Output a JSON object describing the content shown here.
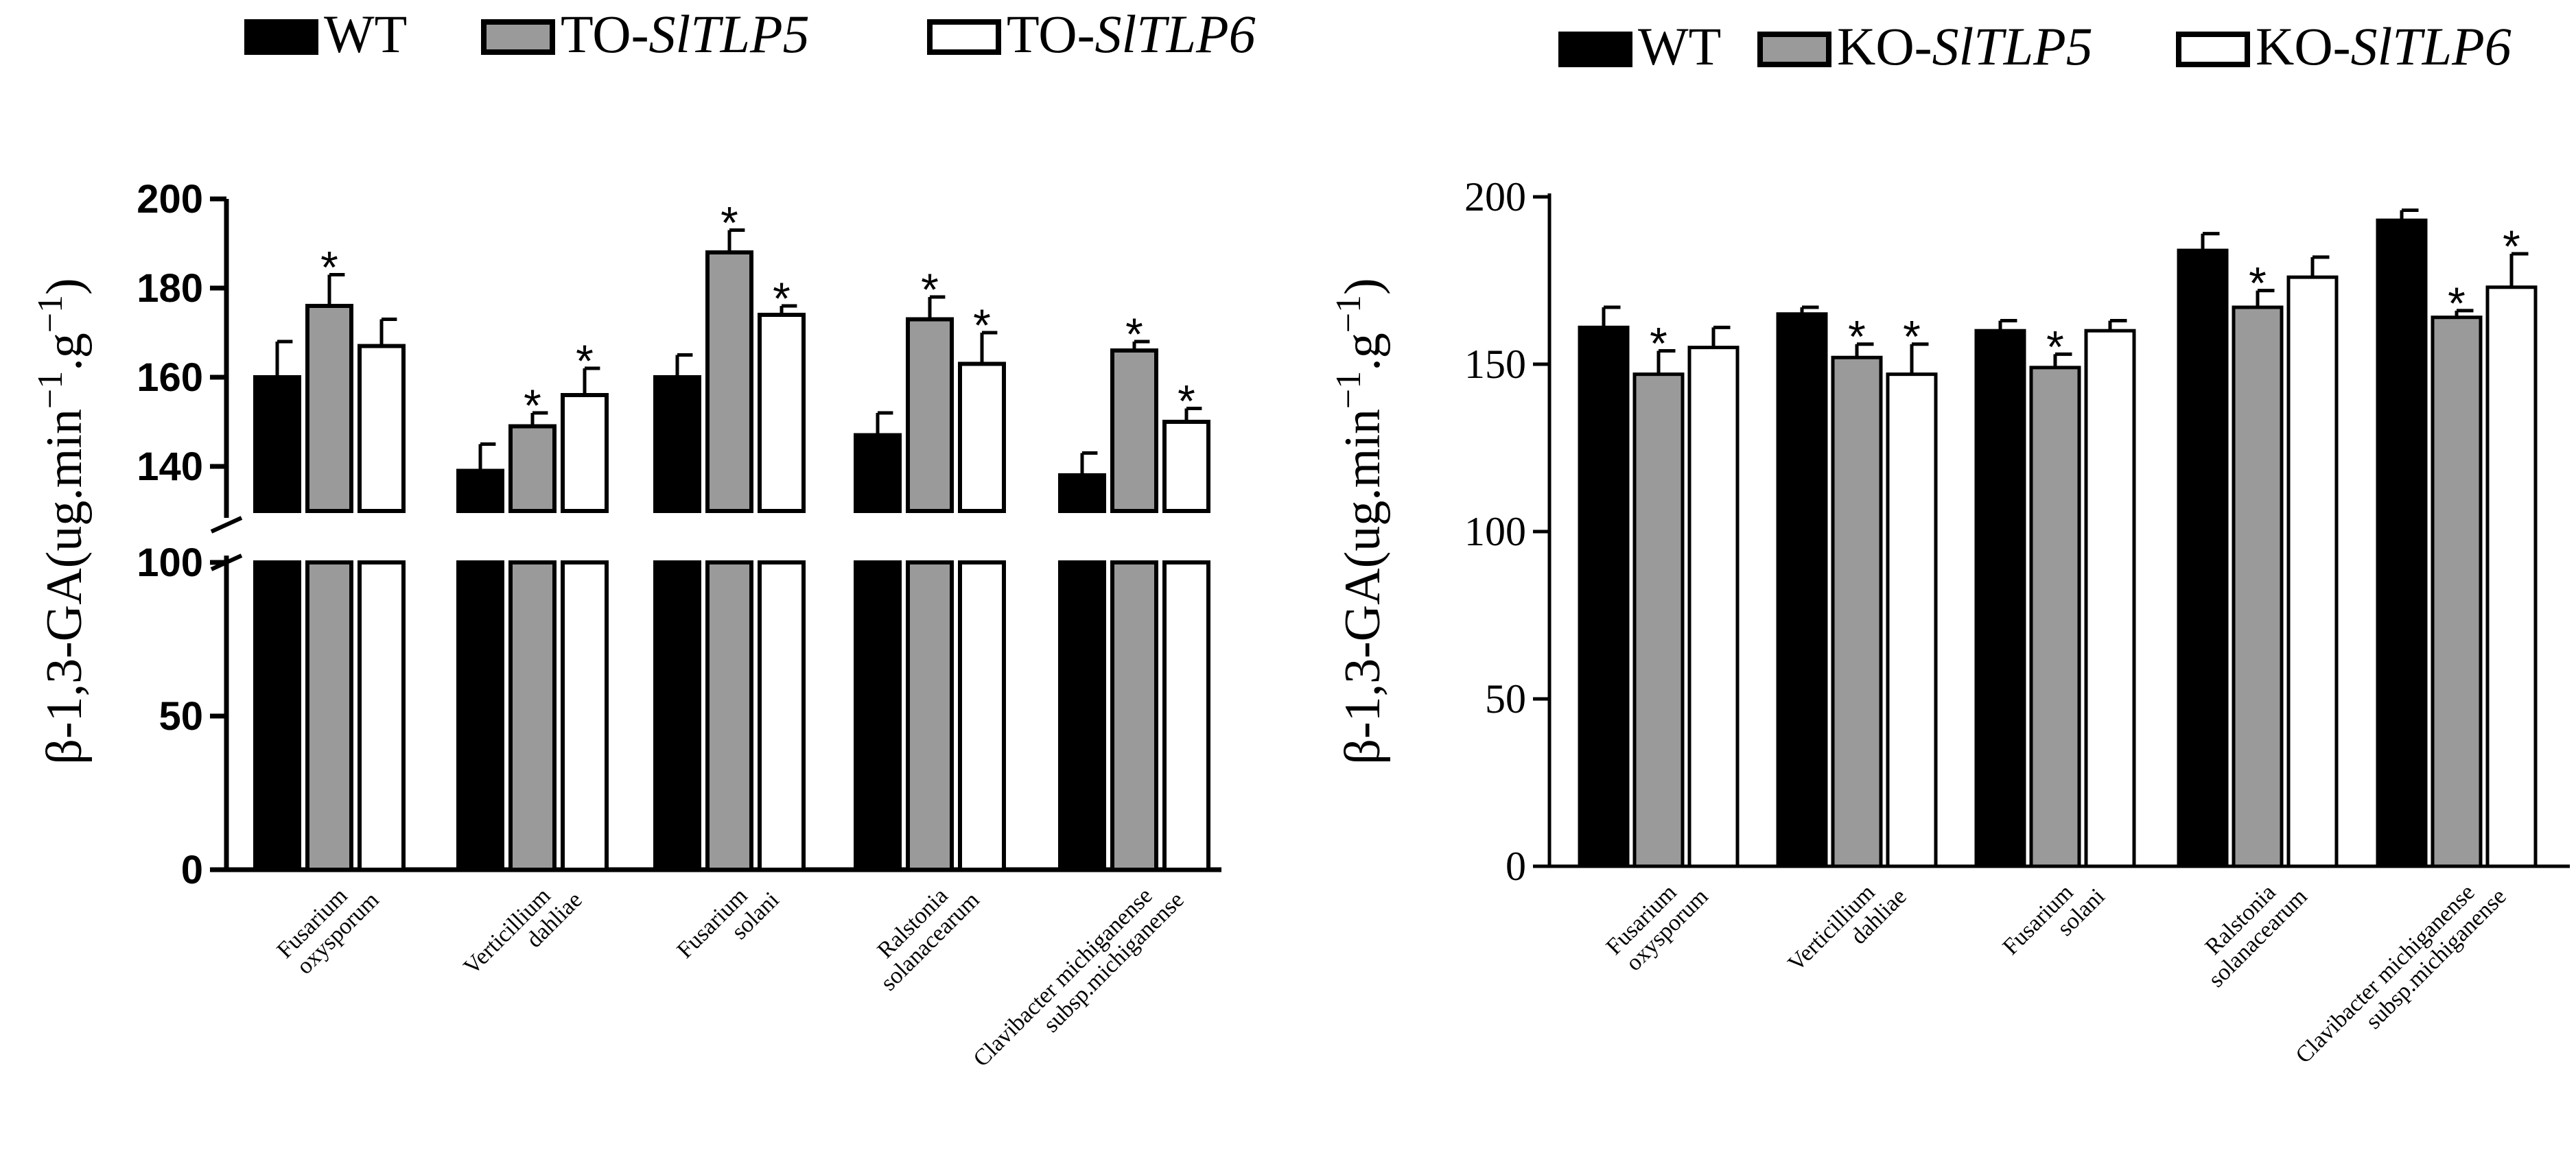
{
  "chart_data": [
    {
      "type": "bar",
      "panel": "left",
      "legend": [
        {
          "label_prefix": "WT",
          "label_italic": "",
          "color": "#000000"
        },
        {
          "label_prefix": "TO-",
          "label_italic": "SlTLP5",
          "color": "#9a9a9a"
        },
        {
          "label_prefix": "TO-",
          "label_italic": "SlTLP6",
          "color": "#ffffff"
        }
      ],
      "ylabel": {
        "main": "β-1,3-GA(ug.min",
        "sup1": "−1",
        "mid": ".g",
        "sup2": "−1",
        "end": ")"
      },
      "axis_break": {
        "lower_range": [
          0,
          100
        ],
        "upper_range": [
          130,
          200
        ]
      },
      "yticks_lower": [
        "0",
        "50",
        "100"
      ],
      "yticks_upper": [
        "140",
        "160",
        "180",
        "200"
      ],
      "categories": [
        [
          "Fusarium",
          "oxysporum"
        ],
        [
          "Verticillium",
          "dahliae"
        ],
        [
          "Fusarium",
          "solani"
        ],
        [
          "Ralstonia",
          "solanacearum"
        ],
        [
          "Clavibacter michiganense",
          "subsp.michiganense"
        ]
      ],
      "series": [
        {
          "name": "WT",
          "values": [
            160,
            139,
            160,
            147,
            138
          ],
          "errors": [
            8,
            6,
            5,
            5,
            5
          ],
          "sig": [
            false,
            false,
            false,
            false,
            false
          ]
        },
        {
          "name": "TO-SlTLP5",
          "values": [
            176,
            149,
            188,
            173,
            166
          ],
          "errors": [
            7,
            3,
            5,
            5,
            2
          ],
          "sig": [
            true,
            true,
            true,
            true,
            true
          ]
        },
        {
          "name": "TO-SlTLP6",
          "values": [
            167,
            156,
            174,
            163,
            150
          ],
          "errors": [
            6,
            6,
            2,
            7,
            3
          ],
          "sig": [
            false,
            true,
            true,
            true,
            true
          ]
        }
      ],
      "sig_marker": "*"
    },
    {
      "type": "bar",
      "panel": "right",
      "legend": [
        {
          "label_prefix": "WT",
          "label_italic": "",
          "color": "#000000"
        },
        {
          "label_prefix": "KO-",
          "label_italic": "SlTLP5",
          "color": "#9a9a9a"
        },
        {
          "label_prefix": "KO-",
          "label_italic": "SlTLP6",
          "color": "#ffffff"
        }
      ],
      "ylabel": {
        "main": "β-1,3-GA(ug.min",
        "sup1": "−1",
        "mid": ".g",
        "sup2": "−1",
        "end": ")"
      },
      "ylim": [
        0,
        200
      ],
      "yticks": [
        "0",
        "50",
        "100",
        "150",
        "200"
      ],
      "categories": [
        [
          "Fusarium",
          "oxysporum"
        ],
        [
          "Verticillium",
          "dahliae"
        ],
        [
          "Fusarium",
          "solani"
        ],
        [
          "Ralstonia",
          "solanacearum"
        ],
        [
          "Clavibacter michiganense",
          "subsp.michiganense"
        ]
      ],
      "series": [
        {
          "name": "WT",
          "values": [
            161,
            165,
            160,
            184,
            193
          ],
          "errors": [
            6,
            2,
            3,
            5,
            3
          ],
          "sig": [
            false,
            false,
            false,
            false,
            false
          ]
        },
        {
          "name": "KO-SlTLP5",
          "values": [
            147,
            152,
            149,
            167,
            164
          ],
          "errors": [
            7,
            4,
            4,
            5,
            2
          ],
          "sig": [
            true,
            true,
            true,
            true,
            true
          ]
        },
        {
          "name": "KO-SlTLP6",
          "values": [
            155,
            147,
            160,
            176,
            173
          ],
          "errors": [
            6,
            9,
            3,
            6,
            10
          ],
          "sig": [
            false,
            true,
            false,
            false,
            true
          ]
        }
      ],
      "sig_marker": "*"
    }
  ]
}
